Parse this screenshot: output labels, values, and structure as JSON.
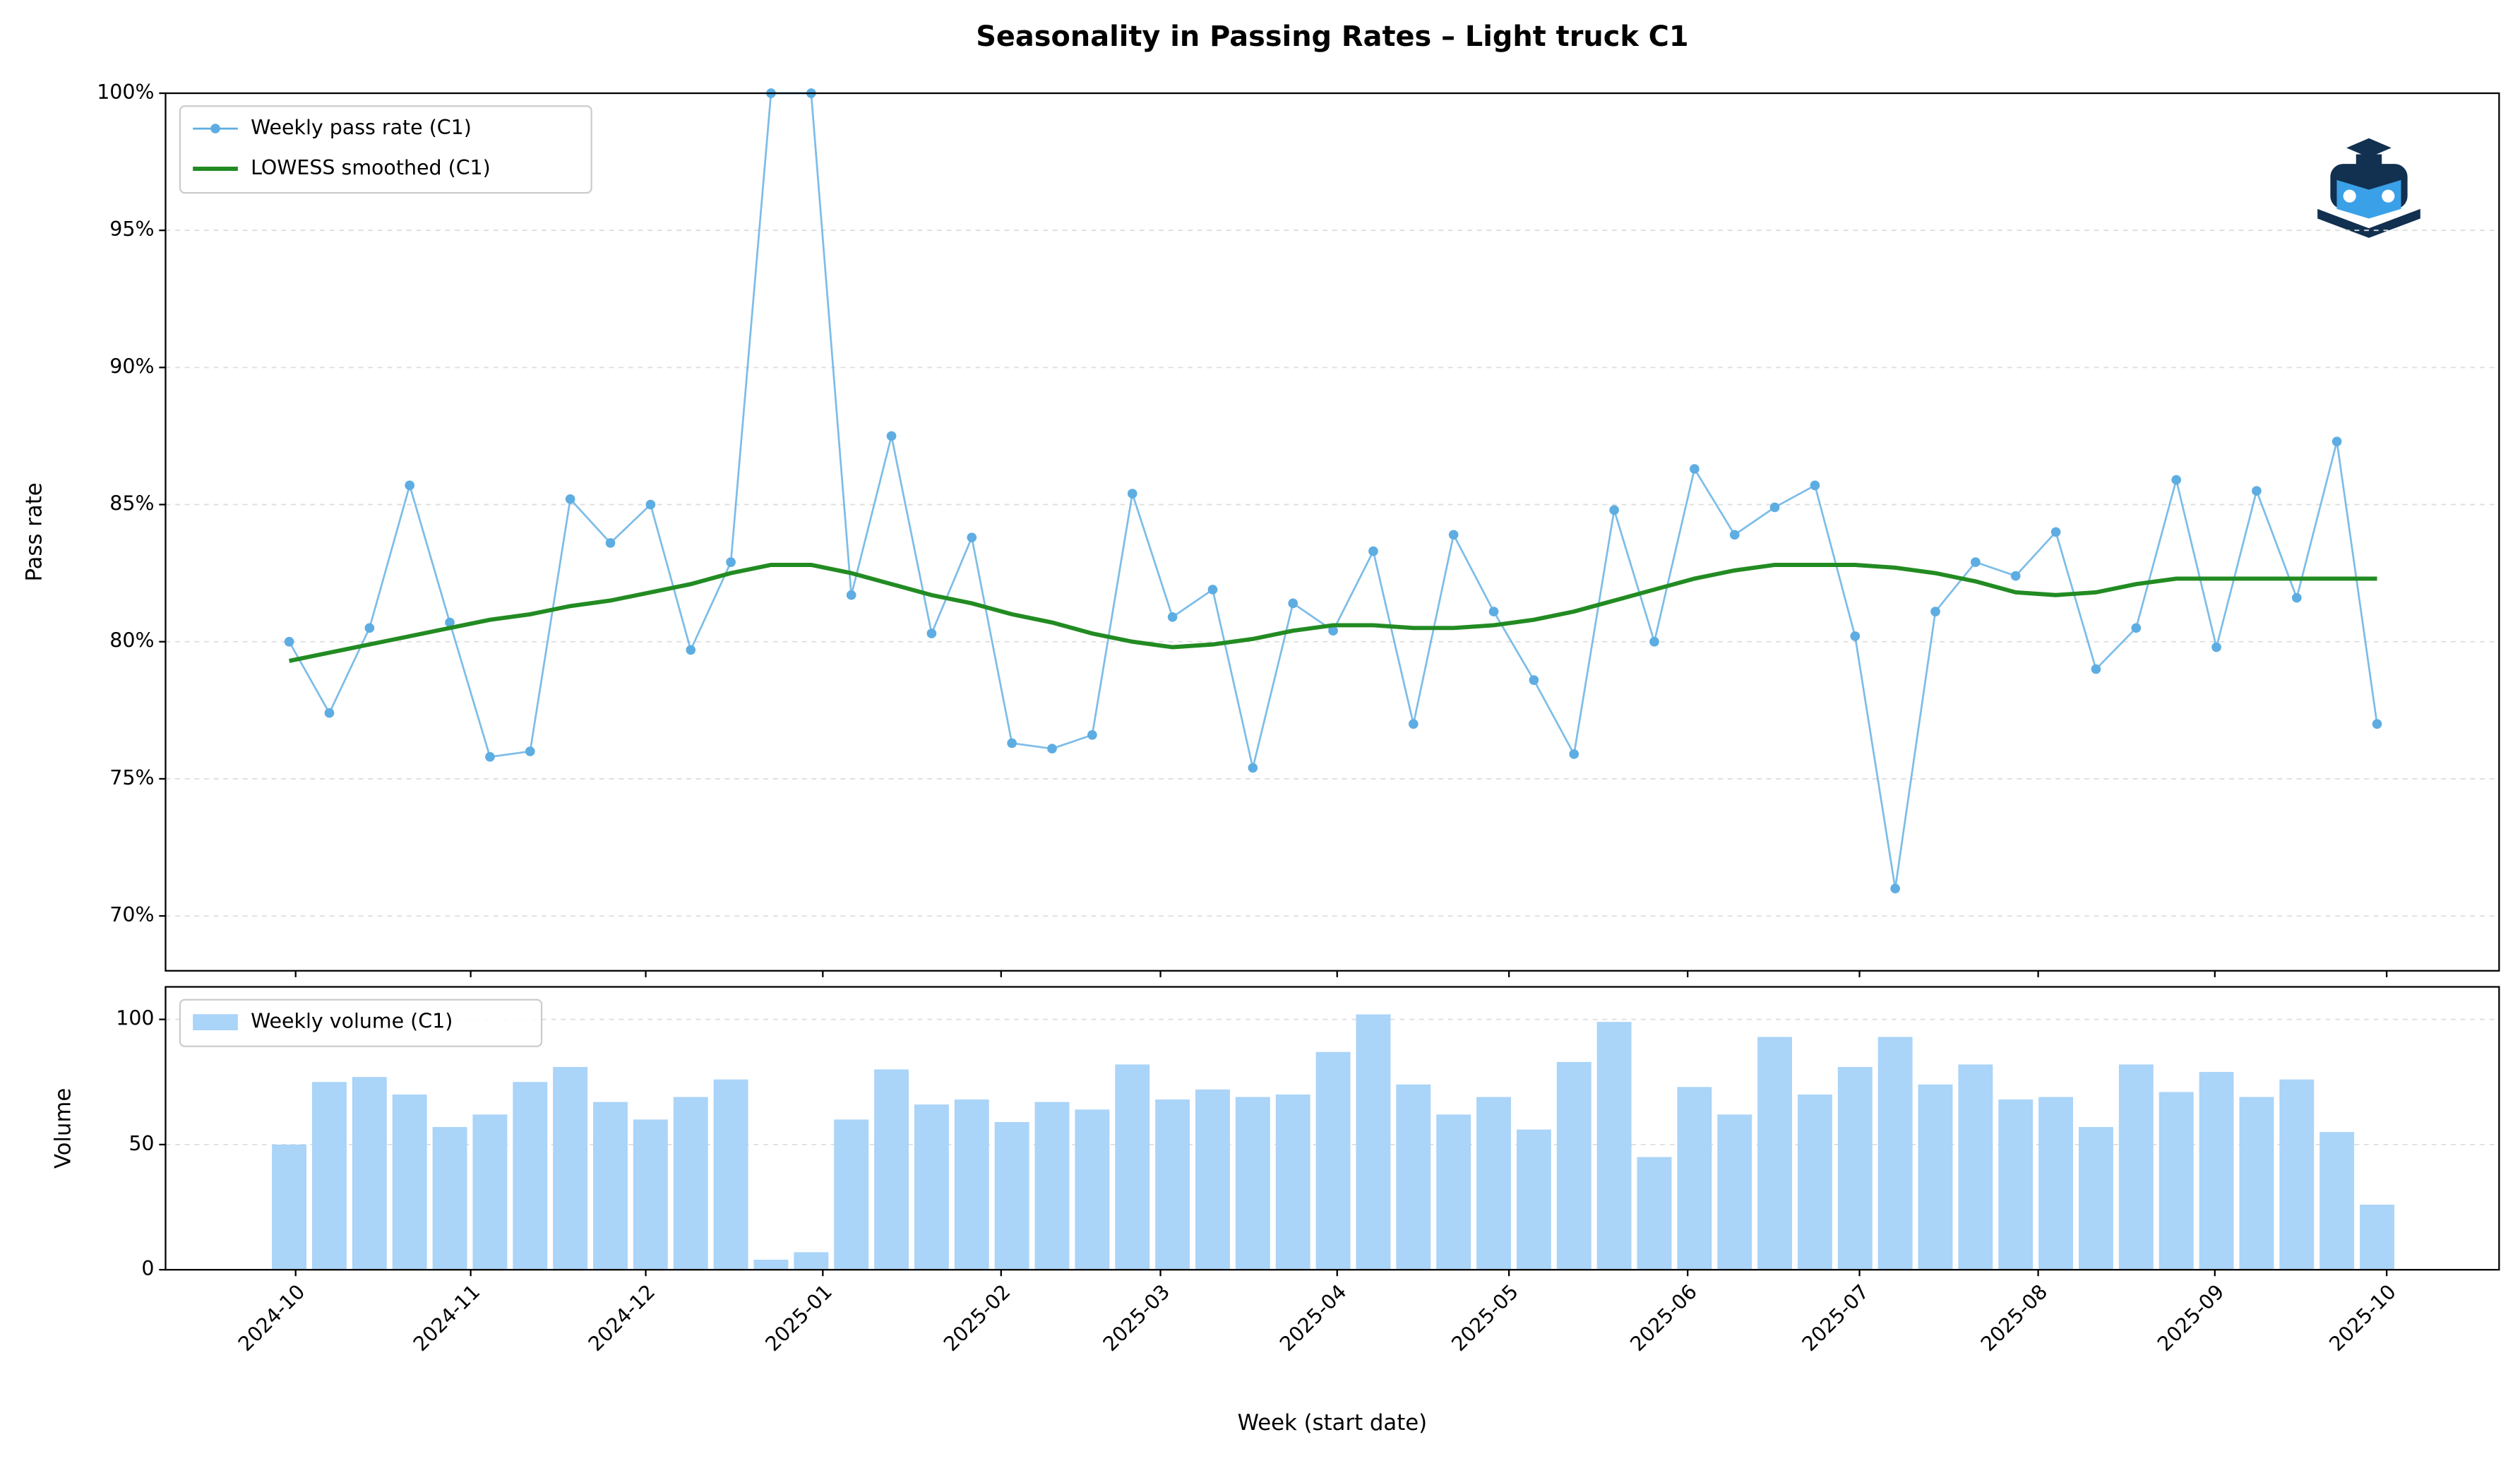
{
  "chart_data": [
    {
      "type": "line",
      "title": "Seasonality in Passing Rates – Light truck C1",
      "ylabel": "Pass rate",
      "categories": [
        null,
        null,
        null,
        null,
        null,
        null,
        null,
        null,
        null,
        null,
        null,
        null,
        null,
        null,
        null,
        null,
        null,
        null,
        null,
        null,
        null,
        null,
        null,
        null,
        null,
        null,
        null,
        null,
        null,
        null,
        null,
        null,
        null,
        null,
        null,
        null,
        null,
        null,
        null,
        null,
        null,
        null,
        null,
        null,
        null,
        null,
        null,
        null,
        null,
        null,
        null,
        null,
        null
      ],
      "series": [
        {
          "name": "Weekly pass rate (C1)",
          "color": "#5dade2",
          "markers": true,
          "values": [
            80.0,
            77.4,
            80.5,
            85.7,
            80.7,
            75.8,
            76.0,
            85.2,
            83.6,
            85.0,
            79.7,
            82.9,
            100,
            100,
            81.7,
            87.5,
            80.3,
            83.8,
            76.3,
            76.1,
            76.6,
            85.4,
            80.9,
            81.9,
            75.4,
            81.4,
            80.4,
            83.3,
            77.0,
            83.9,
            81.1,
            78.6,
            75.9,
            84.8,
            80.0,
            86.3,
            83.9,
            84.9,
            85.7,
            80.2,
            71.0,
            81.1,
            82.9,
            82.4,
            84.0,
            79.0,
            80.5,
            85.9,
            79.8,
            85.5,
            81.6,
            87.3,
            77.0
          ]
        },
        {
          "name": "LOWESS smoothed (C1)",
          "color": "#228b22",
          "markers": false,
          "values": [
            79.3,
            79.6,
            79.9,
            80.2,
            80.5,
            80.8,
            81.0,
            81.3,
            81.5,
            81.8,
            82.1,
            82.5,
            82.8,
            82.8,
            82.5,
            82.1,
            81.7,
            81.4,
            81.0,
            80.7,
            80.3,
            80.0,
            79.8,
            79.9,
            80.1,
            80.4,
            80.6,
            80.6,
            80.5,
            80.5,
            80.6,
            80.8,
            81.1,
            81.5,
            81.9,
            82.3,
            82.6,
            82.8,
            82.8,
            82.8,
            82.7,
            82.5,
            82.2,
            81.8,
            81.7,
            81.8,
            82.1,
            82.3,
            82.3,
            82.3,
            82.3,
            82.3,
            82.3
          ]
        }
      ],
      "ylim": [
        68,
        100
      ],
      "yticks": [
        {
          "value": 70,
          "label": "70%"
        },
        {
          "value": 75,
          "label": "75%"
        },
        {
          "value": 80,
          "label": "80%"
        },
        {
          "value": 85,
          "label": "85%"
        },
        {
          "value": 90,
          "label": "90%"
        },
        {
          "value": 95,
          "label": "95%"
        },
        {
          "value": 100,
          "label": "100%"
        }
      ],
      "xlim": [
        -3.08,
        55.04
      ],
      "grid": true,
      "legend": "upper left"
    },
    {
      "type": "bar",
      "ylabel": "Volume",
      "xlabel": "Week (start date)",
      "categories": [
        null,
        null,
        null,
        null,
        null,
        null,
        null,
        null,
        null,
        null,
        null,
        null,
        null,
        null,
        null,
        null,
        null,
        null,
        null,
        null,
        null,
        null,
        null,
        null,
        null,
        null,
        null,
        null,
        null,
        null,
        null,
        null,
        null,
        null,
        null,
        null,
        null,
        null,
        null,
        null,
        null,
        null,
        null,
        null,
        null,
        null,
        null,
        null,
        null,
        null,
        null,
        null,
        null
      ],
      "series": [
        {
          "name": "Weekly volume (C1)",
          "color": "#aad4f8",
          "values": [
            50,
            75,
            77,
            70,
            57,
            62,
            75,
            81,
            67,
            60,
            69,
            76,
            4,
            7,
            60,
            80,
            66,
            68,
            59,
            67,
            64,
            82,
            68,
            72,
            69,
            70,
            87,
            102,
            74,
            62,
            69,
            56,
            83,
            99,
            45,
            73,
            62,
            93,
            70,
            81,
            93,
            74,
            82,
            68,
            69,
            57,
            82,
            71,
            79,
            69,
            76,
            55,
            26
          ]
        }
      ],
      "ylim": [
        0,
        113
      ],
      "yticks": [
        0,
        50,
        100
      ],
      "xlim": [
        -3.08,
        55.04
      ],
      "xticks": [
        {
          "value": 0.16,
          "label": "2024-10"
        },
        {
          "value": 4.52,
          "label": "2024-11"
        },
        {
          "value": 8.88,
          "label": "2024-12"
        },
        {
          "value": 13.29,
          "label": "2025-01"
        },
        {
          "value": 17.73,
          "label": "2025-02"
        },
        {
          "value": 21.7,
          "label": "2025-03"
        },
        {
          "value": 26.1,
          "label": "2025-04"
        },
        {
          "value": 30.38,
          "label": "2025-05"
        },
        {
          "value": 34.83,
          "label": "2025-06"
        },
        {
          "value": 39.11,
          "label": "2025-07"
        },
        {
          "value": 43.56,
          "label": "2025-08"
        },
        {
          "value": 47.96,
          "label": "2025-09"
        },
        {
          "value": 52.24,
          "label": "2025-10"
        }
      ],
      "grid": true,
      "legend": "upper left"
    }
  ]
}
